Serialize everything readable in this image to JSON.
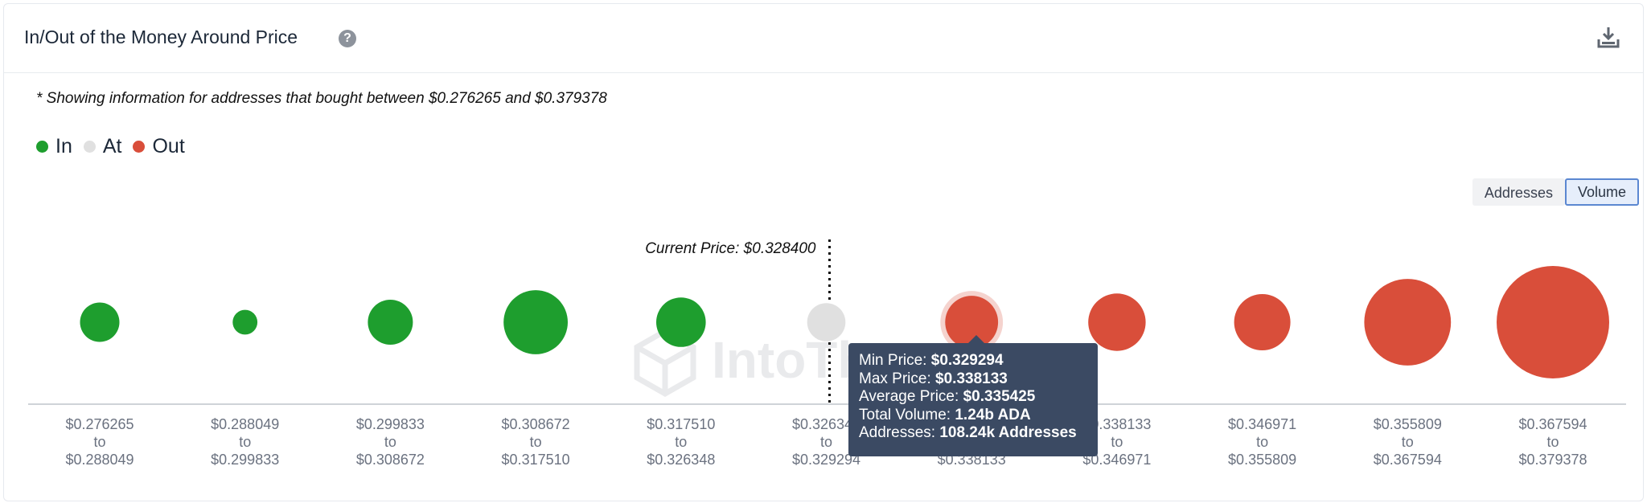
{
  "header": {
    "title": "In/Out of the Money Around Price",
    "help_icon": "question-circle-icon",
    "download_icon": "download-icon"
  },
  "note": "* Showing information for addresses that bought between $0.276265 and $0.379378",
  "legend": [
    {
      "label": "In",
      "color": "#1e9e2e"
    },
    {
      "label": "At",
      "color": "#e0e0e0"
    },
    {
      "label": "Out",
      "color": "#d94e3a"
    }
  ],
  "toggle": {
    "addresses_label": "Addresses",
    "volume_label": "Volume",
    "selected": "Volume"
  },
  "watermark": "IntoThe",
  "chart_data": {
    "type": "bubble",
    "current_price_label": "Current Price: $0.328400",
    "current_price": 0.3284,
    "size_metric": "Volume",
    "bins": [
      {
        "from": "$0.276265",
        "to": "$0.288049",
        "status": "In",
        "relative_size": 0.35
      },
      {
        "from": "$0.288049",
        "to": "$0.299833",
        "status": "In",
        "relative_size": 0.22
      },
      {
        "from": "$0.299833",
        "to": "$0.308672",
        "status": "In",
        "relative_size": 0.4
      },
      {
        "from": "$0.308672",
        "to": "$0.317510",
        "status": "In",
        "relative_size": 0.57
      },
      {
        "from": "$0.317510",
        "to": "$0.326348",
        "status": "In",
        "relative_size": 0.44
      },
      {
        "from": "$0.326348",
        "to": "$0.329294",
        "status": "At",
        "relative_size": 0.34
      },
      {
        "from": "$0.329294",
        "to": "$0.338133",
        "status": "Out",
        "relative_size": 0.47
      },
      {
        "from": "$0.338133",
        "to": "$0.346971",
        "status": "Out",
        "relative_size": 0.51
      },
      {
        "from": "$0.346971",
        "to": "$0.355809",
        "status": "Out",
        "relative_size": 0.5
      },
      {
        "from": "$0.355809",
        "to": "$0.367594",
        "status": "Out",
        "relative_size": 0.77
      },
      {
        "from": "$0.367594",
        "to": "$0.379378",
        "status": "Out",
        "relative_size": 1.0
      }
    ],
    "to_word": "to",
    "hovered_index": 6,
    "tooltip": {
      "min_label": "Min Price:",
      "min_value": "$0.329294",
      "max_label": "Max Price:",
      "max_value": "$0.338133",
      "avg_label": "Average Price:",
      "avg_value": "$0.335425",
      "vol_label": "Total Volume:",
      "vol_value": "1.24b ADA",
      "addr_label": "Addresses:",
      "addr_value": "108.24k Addresses"
    }
  }
}
